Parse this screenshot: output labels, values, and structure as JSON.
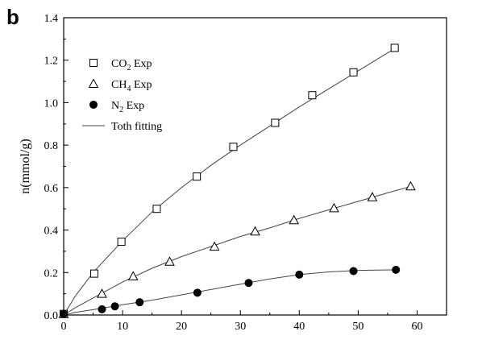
{
  "panel_label": "b",
  "chart_data": {
    "type": "scatter",
    "xlabel": "",
    "ylabel": "n(mmol/g)",
    "xlim": [
      0,
      65
    ],
    "ylim": [
      0,
      1.4
    ],
    "xticks": [
      0,
      10,
      20,
      30,
      40,
      50,
      60
    ],
    "yticks": [
      0.0,
      0.2,
      0.4,
      0.6,
      0.8,
      1.0,
      1.2,
      1.4
    ],
    "xtick_labels": [
      "0",
      "10",
      "20",
      "30",
      "40",
      "50",
      "60"
    ],
    "ytick_labels": [
      "0.0",
      "0.2",
      "0.4",
      "0.6",
      "0.8",
      "1.0",
      "1.2",
      "1.4"
    ],
    "legend_position": "top-left",
    "series": [
      {
        "name": "CO2 Exp",
        "marker": "open-square",
        "color": "#000000",
        "x": [
          0,
          5.2,
          9.8,
          15.8,
          22.6,
          28.8,
          35.9,
          42.2,
          49.2,
          56.2
        ],
        "y": [
          0.005,
          0.195,
          0.345,
          0.5,
          0.652,
          0.792,
          0.905,
          1.035,
          1.143,
          1.258
        ]
      },
      {
        "name": "CH4 Exp",
        "marker": "open-triangle",
        "color": "#000000",
        "x": [
          0,
          6.5,
          11.8,
          18.0,
          25.6,
          32.5,
          39.1,
          45.9,
          52.4,
          58.9
        ],
        "y": [
          0.005,
          0.1,
          0.182,
          0.251,
          0.322,
          0.394,
          0.447,
          0.503,
          0.555,
          0.606
        ]
      },
      {
        "name": "N2 Exp",
        "marker": "filled-circle",
        "color": "#000000",
        "x": [
          0,
          6.5,
          8.7,
          12.9,
          22.7,
          31.4,
          40.0,
          49.2,
          56.4
        ],
        "y": [
          0.005,
          0.027,
          0.041,
          0.06,
          0.105,
          0.151,
          0.19,
          0.207,
          0.213
        ]
      }
    ],
    "fits": [
      {
        "name": "Toth fitting",
        "color": "#444444",
        "x": [
          0,
          2,
          5,
          10,
          15,
          20,
          25,
          30,
          35,
          40,
          45,
          50,
          56.5
        ],
        "y": [
          0,
          0.09,
          0.2,
          0.35,
          0.485,
          0.6,
          0.705,
          0.8,
          0.89,
          0.98,
          1.065,
          1.15,
          1.26
        ]
      },
      {
        "name": "",
        "color": "#444444",
        "x": [
          0,
          2,
          5,
          10,
          15,
          20,
          25,
          30,
          35,
          40,
          45,
          50,
          55,
          59
        ],
        "y": [
          0,
          0.035,
          0.08,
          0.155,
          0.22,
          0.275,
          0.322,
          0.37,
          0.41,
          0.455,
          0.495,
          0.535,
          0.575,
          0.606
        ]
      },
      {
        "name": "",
        "color": "#444444",
        "x": [
          0,
          2,
          5,
          10,
          15,
          20,
          25,
          30,
          35,
          40,
          45,
          50,
          56.5
        ],
        "y": [
          0,
          0.012,
          0.025,
          0.048,
          0.07,
          0.095,
          0.12,
          0.145,
          0.17,
          0.19,
          0.203,
          0.21,
          0.213
        ]
      }
    ],
    "legend": [
      {
        "marker": "open-square",
        "main": "CO",
        "sub": "2",
        "after": " Exp"
      },
      {
        "marker": "open-triangle",
        "main": "CH",
        "sub": "4",
        "after": " Exp"
      },
      {
        "marker": "filled-circle",
        "main": "N",
        "sub": "2",
        "after": "   Exp"
      },
      {
        "marker": "line",
        "main": "Toth fitting",
        "sub": "",
        "after": ""
      }
    ]
  }
}
